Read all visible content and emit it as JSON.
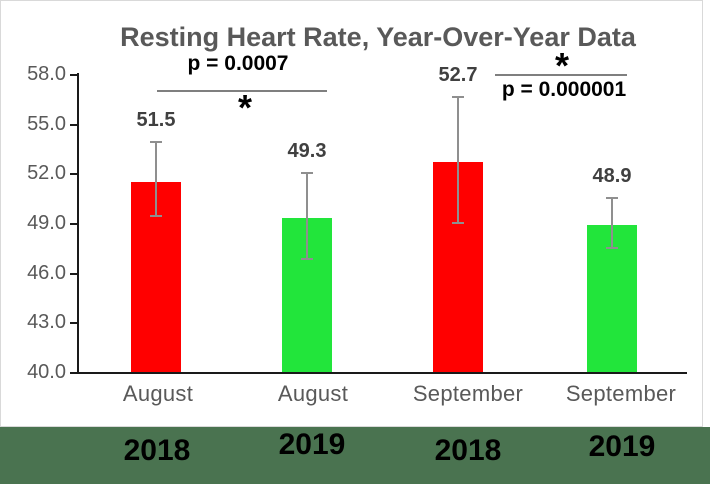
{
  "title": "Resting Heart Rate, Year-Over-Year Data",
  "colors": {
    "red_bar": "#ff0000",
    "green_bar": "#22e53b",
    "footer_band": "#4a7350",
    "title_text": "#595959",
    "axis_text": "#595959",
    "error_bar": "#8f8f8f"
  },
  "chart_data": {
    "type": "bar",
    "title": "Resting Heart Rate, Year-Over-Year Data",
    "xlabel": "",
    "ylabel": "",
    "ylim": [
      40.0,
      58.0
    ],
    "y_tick_labels": [
      "58.0",
      "55.0",
      "52.0",
      "49.0",
      "46.0",
      "43.0",
      "40.0"
    ],
    "grid": false,
    "legend": "none",
    "categories": [
      "August 2018",
      "August 2019",
      "September 2018",
      "September 2019"
    ],
    "bars": [
      {
        "month": "August",
        "year": "2018",
        "value": 51.5,
        "label": "51.5",
        "color": "#ff0000",
        "error_high": 53.9,
        "error_low": 49.4
      },
      {
        "month": "August",
        "year": "2019",
        "value": 49.3,
        "label": "49.3",
        "color": "#22e53b",
        "error_high": 52.0,
        "error_low": 46.8
      },
      {
        "month": "September",
        "year": "2018",
        "value": 52.7,
        "label": "52.7",
        "color": "#ff0000",
        "error_high": 56.6,
        "error_low": 49.0
      },
      {
        "month": "September",
        "year": "2019",
        "value": 48.9,
        "label": "48.9",
        "color": "#22e53b",
        "error_high": 50.5,
        "error_low": 47.5
      }
    ],
    "annotations": [
      {
        "text": "p = 0.0007",
        "asterisk": "*",
        "compares": [
          "August 2018",
          "August 2019"
        ],
        "layout": "text-above-line"
      },
      {
        "text": "p = 0.000001",
        "asterisk": "*",
        "compares": [
          "September 2018",
          "September 2019"
        ],
        "layout": "asterisk-above-line"
      }
    ]
  }
}
